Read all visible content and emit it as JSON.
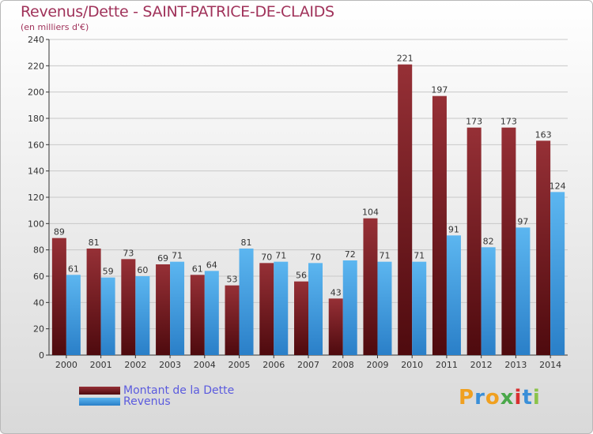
{
  "chart_data": {
    "type": "bar",
    "title": "Revenus/Dette - SAINT-PATRICE-DE-CLAIDS",
    "subtitle": "(en milliers d'€)",
    "categories": [
      "2000",
      "2001",
      "2002",
      "2003",
      "2004",
      "2005",
      "2006",
      "2007",
      "2008",
      "2009",
      "2010",
      "2011",
      "2012",
      "2013",
      "2014"
    ],
    "series": [
      {
        "name": "Montant de la Dette",
        "color": "#7a1a1e",
        "values": [
          89,
          81,
          73,
          69,
          61,
          53,
          70,
          56,
          43,
          104,
          221,
          197,
          173,
          173,
          163
        ]
      },
      {
        "name": "Revenus",
        "color": "#3f9de0",
        "values": [
          61,
          59,
          60,
          71,
          64,
          81,
          71,
          70,
          72,
          71,
          71,
          91,
          82,
          97,
          124
        ]
      }
    ],
    "yticks": [
      0,
      20,
      40,
      60,
      80,
      100,
      120,
      140,
      160,
      180,
      200,
      220,
      240
    ],
    "ylim": [
      0,
      240
    ],
    "grid": true,
    "legend_position": "bottom-left"
  },
  "brand": {
    "letters": [
      "P",
      "r",
      "o",
      "x",
      "i",
      "t",
      "i"
    ],
    "colors": [
      "#f0a020",
      "#3a8fd8",
      "#f0a020",
      "#4aa84a",
      "#d83030",
      "#3a8fd8",
      "#8bc34a"
    ]
  }
}
